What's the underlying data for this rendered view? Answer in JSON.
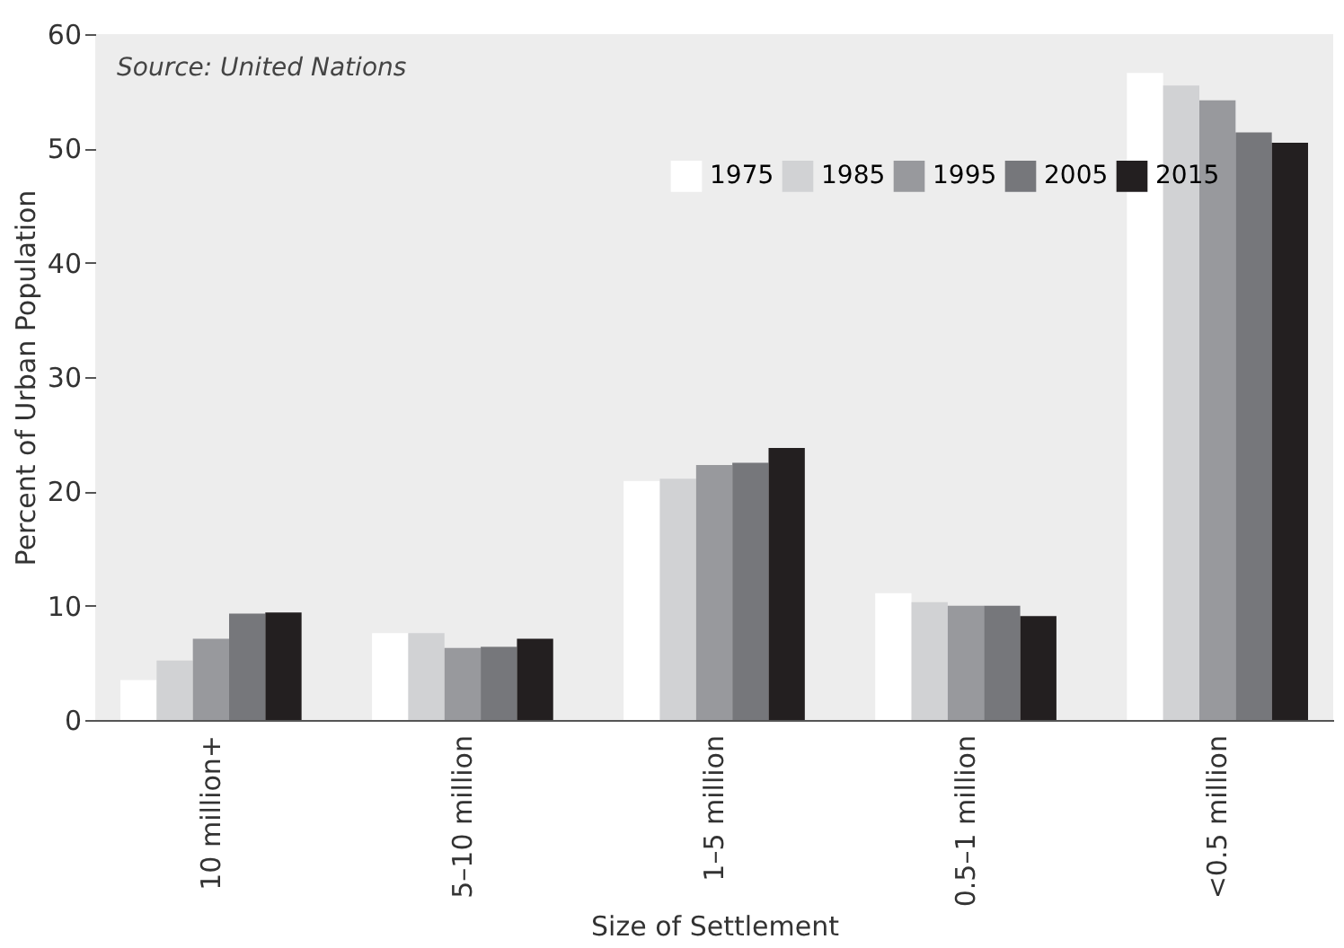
{
  "chart_data": {
    "type": "bar",
    "xlabel": "Size of Settlement",
    "ylabel": "Percent of Urban Population",
    "annotations": [
      "Source: United Nations"
    ],
    "categories": [
      "10 million+",
      "5–10 million",
      "1–5 million",
      "0.5–1 million",
      "<0.5 million"
    ],
    "series": [
      {
        "name": "1975",
        "color": "#ffffff",
        "values": [
          3.5,
          7.6,
          20.9,
          11.1,
          56.6
        ]
      },
      {
        "name": "1985",
        "color": "#d1d2d4",
        "values": [
          5.2,
          7.6,
          21.1,
          10.3,
          55.5
        ]
      },
      {
        "name": "1995",
        "color": "#98999d",
        "values": [
          7.1,
          6.3,
          22.3,
          10.0,
          54.2
        ]
      },
      {
        "name": "2005",
        "color": "#76777b",
        "values": [
          9.3,
          6.4,
          22.5,
          10.0,
          51.4
        ]
      },
      {
        "name": "2015",
        "color": "#231f20",
        "values": [
          9.4,
          7.1,
          23.8,
          9.1,
          50.5
        ]
      }
    ],
    "ylim": [
      0,
      60
    ],
    "yticks": [
      0,
      10,
      20,
      30,
      40,
      50,
      60
    ],
    "grid": false,
    "legend": "top"
  }
}
